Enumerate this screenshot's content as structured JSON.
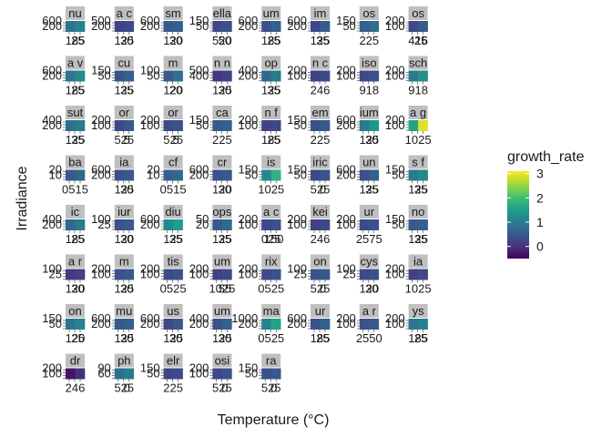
{
  "chart_data": {
    "type": "heatmap",
    "facet_layout": "wrap",
    "xlabel": "Temperature (°C)",
    "ylabel": "Irradiance",
    "color_scale": {
      "name": "viridis",
      "variable": "growth_rate",
      "range": [
        -0.5,
        3.1
      ],
      "breaks": [
        "0",
        "1",
        "2",
        "3"
      ],
      "break_values": [
        0,
        1,
        2,
        3
      ],
      "colors": [
        "#440154",
        "#482878",
        "#3e4989",
        "#31688e",
        "#26828e",
        "#1f9e89",
        "#35b779",
        "#6ece58",
        "#b5de2b",
        "#fde725"
      ]
    },
    "legend": {
      "title": "growth_rate",
      "placement": "right"
    },
    "facets": [
      {
        "strip": "nu",
        "x": [
          "185",
          "25"
        ],
        "y": [
          "600",
          "200"
        ],
        "values": [
          0.9,
          1.1
        ]
      },
      {
        "strip": "a c",
        "x": [
          "125",
          "30"
        ],
        "y": [
          "500",
          "200"
        ],
        "values": [
          0.2,
          0.3
        ]
      },
      {
        "strip": "sm",
        "x": [
          "120",
          "30"
        ],
        "y": [
          "600",
          "200"
        ],
        "values": [
          0.5,
          0.6
        ]
      },
      {
        "strip": "ella",
        "x": [
          "520",
          "50"
        ],
        "y": [
          "150",
          "50"
        ],
        "values": [
          0.3,
          0.4
        ]
      },
      {
        "strip": "um",
        "x": [
          "185",
          "25"
        ],
        "y": [
          "600",
          "200"
        ],
        "values": [
          0.4,
          0.6
        ]
      },
      {
        "strip": "im",
        "x": [
          "125",
          "35"
        ],
        "y": [
          "600",
          "200"
        ],
        "values": [
          0.3,
          0.5
        ]
      },
      {
        "strip": "os",
        "x": [
          "225",
          ""
        ],
        "y": [
          "150",
          "50"
        ],
        "values": [
          0.6,
          0.8
        ]
      },
      {
        "strip": "os",
        "x": [
          "416",
          "25"
        ],
        "y": [
          "200",
          "100"
        ],
        "values": [
          0.3,
          0.5
        ]
      },
      {
        "strip": "a v",
        "x": [
          "185",
          "25"
        ],
        "y": [
          "600",
          "200"
        ],
        "values": [
          0.9,
          1.2
        ]
      },
      {
        "strip": "cu",
        "x": [
          "125",
          "35"
        ],
        "y": [
          "150",
          "50"
        ],
        "values": [
          0.4,
          0.6
        ]
      },
      {
        "strip": "m",
        "x": [
          "120",
          "20"
        ],
        "y": [
          "100",
          "50"
        ],
        "values": [
          0.5,
          0.8
        ]
      },
      {
        "strip": "n n",
        "x": [
          "125",
          "30"
        ],
        "y": [
          "500",
          "400"
        ],
        "values": [
          0.1,
          0.2
        ]
      },
      {
        "strip": "op",
        "x": [
          "125",
          "35"
        ],
        "y": [
          "400",
          "200"
        ],
        "values": [
          0.7,
          1.0
        ]
      },
      {
        "strip": "n c",
        "x": [
          "246",
          ""
        ],
        "y": [
          "200",
          "100"
        ],
        "values": [
          0.2,
          0.3
        ]
      },
      {
        "strip": "iso",
        "x": [
          "918",
          ""
        ],
        "y": [
          "200",
          "100"
        ],
        "values": [
          0.3,
          0.4
        ]
      },
      {
        "strip": "sch",
        "x": [
          "918",
          ""
        ],
        "y": [
          "200",
          "100"
        ],
        "values": [
          1.0,
          1.3
        ]
      },
      {
        "strip": "sut",
        "x": [
          "125",
          "35"
        ],
        "y": [
          "400",
          "200"
        ],
        "values": [
          0.8,
          1.0
        ]
      },
      {
        "strip": "or",
        "x": [
          "525",
          "5"
        ],
        "y": [
          "200",
          "100"
        ],
        "values": [
          0.3,
          0.5
        ]
      },
      {
        "strip": "or",
        "x": [
          "525",
          "5"
        ],
        "y": [
          "200",
          "100"
        ],
        "values": [
          0.3,
          0.4
        ]
      },
      {
        "strip": "ca",
        "x": [
          "225",
          ""
        ],
        "y": [
          "150",
          "50"
        ],
        "values": [
          0.5,
          0.6
        ]
      },
      {
        "strip": "n f",
        "x": [
          "185",
          "25"
        ],
        "y": [
          "200",
          "100"
        ],
        "values": [
          0.2,
          0.3
        ]
      },
      {
        "strip": "em",
        "x": [
          "225",
          ""
        ],
        "y": [
          "150",
          "50"
        ],
        "values": [
          0.4,
          0.5
        ]
      },
      {
        "strip": "ium",
        "x": [
          "125",
          "30"
        ],
        "y": [
          "600",
          "200"
        ],
        "values": [
          1.0,
          1.4
        ]
      },
      {
        "strip": "a g",
        "x": [
          "1025",
          ""
        ],
        "y": [
          "200",
          "100"
        ],
        "values": [
          1.6,
          2.9
        ]
      },
      {
        "strip": "ba",
        "x": [
          "0515",
          ""
        ],
        "y": [
          "20",
          "10"
        ],
        "values": [
          0.5,
          0.7
        ]
      },
      {
        "strip": "ia",
        "x": [
          "125",
          "30"
        ],
        "y": [
          "600",
          "200"
        ],
        "values": [
          0.4,
          0.5
        ]
      },
      {
        "strip": "cf",
        "x": [
          "0515",
          ""
        ],
        "y": [
          "20",
          "10"
        ],
        "values": [
          0.6,
          0.7
        ]
      },
      {
        "strip": "cr",
        "x": [
          "120",
          "30"
        ],
        "y": [
          "600",
          "200"
        ],
        "values": [
          0.4,
          0.5
        ]
      },
      {
        "strip": "is",
        "x": [
          "1025",
          ""
        ],
        "y": [
          "150",
          "50"
        ],
        "values": [
          1.2,
          1.8
        ]
      },
      {
        "strip": "iric",
        "x": [
          "525",
          "0"
        ],
        "y": [
          "150",
          "50"
        ],
        "values": [
          0.3,
          0.4
        ]
      },
      {
        "strip": "un",
        "x": [
          "125",
          "35"
        ],
        "y": [
          "600",
          "200"
        ],
        "values": [
          0.4,
          0.6
        ]
      },
      {
        "strip": "s f",
        "x": [
          "125",
          "35"
        ],
        "y": [
          "150",
          "50"
        ],
        "values": [
          1.0,
          1.2
        ]
      },
      {
        "strip": "ic",
        "x": [
          "185",
          "25"
        ],
        "y": [
          "400",
          "200"
        ],
        "values": [
          0.7,
          1.0
        ]
      },
      {
        "strip": "iur",
        "x": [
          "120",
          "30"
        ],
        "y": [
          "100",
          "25"
        ],
        "values": [
          0.4,
          0.5
        ]
      },
      {
        "strip": "diu",
        "x": [
          "125",
          "35"
        ],
        "y": [
          "600",
          "200"
        ],
        "values": [
          1.2,
          1.5
        ]
      },
      {
        "strip": "ops",
        "x": [
          "125",
          "35"
        ],
        "y": [
          "50",
          "20"
        ],
        "values": [
          0.5,
          0.7
        ]
      },
      {
        "strip": "a c",
        "x": [
          "025",
          "150"
        ],
        "y": [
          "200",
          "100"
        ],
        "values": [
          0.3,
          0.4
        ]
      },
      {
        "strip": "kei",
        "x": [
          "246",
          ""
        ],
        "y": [
          "200",
          "100"
        ],
        "values": [
          0.2,
          0.3
        ]
      },
      {
        "strip": "ur",
        "x": [
          "2575",
          ""
        ],
        "y": [
          "200",
          "100"
        ],
        "values": [
          0.3,
          0.4
        ]
      },
      {
        "strip": "no",
        "x": [
          "125",
          "35"
        ],
        "y": [
          "150",
          "50"
        ],
        "values": [
          0.5,
          0.6
        ]
      },
      {
        "strip": "a r",
        "x": [
          "120",
          "30"
        ],
        "y": [
          "100",
          "25"
        ],
        "values": [
          0.1,
          0.2
        ]
      },
      {
        "strip": "m",
        "x": [
          "125",
          "30"
        ],
        "y": [
          "200",
          "100"
        ],
        "values": [
          0.4,
          0.5
        ]
      },
      {
        "strip": "tis",
        "x": [
          "0525",
          ""
        ],
        "y": [
          "200",
          "100"
        ],
        "values": [
          0.3,
          0.4
        ]
      },
      {
        "strip": "um",
        "x": [
          "1025",
          "55"
        ],
        "y": [
          "200",
          "100"
        ],
        "values": [
          0.2,
          0.3
        ]
      },
      {
        "strip": "rix",
        "x": [
          "0525",
          ""
        ],
        "y": [
          "200",
          "100"
        ],
        "values": [
          0.3,
          0.4
        ]
      },
      {
        "strip": "on",
        "x": [
          "525",
          "0"
        ],
        "y": [
          "100",
          "25"
        ],
        "values": [
          0.4,
          0.5
        ]
      },
      {
        "strip": "cys",
        "x": [
          "120",
          "30"
        ],
        "y": [
          "100",
          "25"
        ],
        "values": [
          0.3,
          0.4
        ]
      },
      {
        "strip": "ia",
        "x": [
          "1025",
          ""
        ],
        "y": [
          "200",
          "100"
        ],
        "values": [
          0.2,
          0.3
        ]
      },
      {
        "strip": "on",
        "x": [
          "120",
          "25"
        ],
        "y": [
          "150",
          "50"
        ],
        "values": [
          0.9,
          1.1
        ]
      },
      {
        "strip": "mu",
        "x": [
          "125",
          "30"
        ],
        "y": [
          "600",
          "200"
        ],
        "values": [
          0.5,
          0.6
        ]
      },
      {
        "strip": "us",
        "x": [
          "125",
          "30"
        ],
        "y": [
          "600",
          "200"
        ],
        "values": [
          0.3,
          0.5
        ]
      },
      {
        "strip": "um",
        "x": [
          "125",
          "30"
        ],
        "y": [
          "400",
          "200"
        ],
        "values": [
          0.4,
          0.6
        ]
      },
      {
        "strip": "ma",
        "x": [
          "0525",
          ""
        ],
        "y": [
          "1000",
          "200"
        ],
        "values": [
          1.1,
          1.6
        ]
      },
      {
        "strip": "ur",
        "x": [
          "185",
          "25"
        ],
        "y": [
          "600",
          "200"
        ],
        "values": [
          0.4,
          0.6
        ]
      },
      {
        "strip": "a r",
        "x": [
          "2550",
          ""
        ],
        "y": [
          "200",
          "100"
        ],
        "values": [
          0.4,
          0.5
        ]
      },
      {
        "strip": "ys",
        "x": [
          "185",
          "25"
        ],
        "y": [
          "200",
          "100"
        ],
        "values": [
          0.9,
          1.1
        ]
      },
      {
        "strip": "dr",
        "x": [
          "246",
          ""
        ],
        "y": [
          "200",
          "100"
        ],
        "values": [
          -0.3,
          0.0
        ]
      },
      {
        "strip": "ph",
        "x": [
          "525",
          "0"
        ],
        "y": [
          "90",
          "60"
        ],
        "values": [
          0.8,
          1.0
        ]
      },
      {
        "strip": "elr",
        "x": [
          "225",
          ""
        ],
        "y": [
          "150",
          "50"
        ],
        "values": [
          0.2,
          0.3
        ]
      },
      {
        "strip": "osi",
        "x": [
          "525",
          "0"
        ],
        "y": [
          "200",
          "100"
        ],
        "values": [
          0.3,
          0.4
        ]
      },
      {
        "strip": "ra",
        "x": [
          "525",
          "0"
        ],
        "y": [
          "150",
          "50"
        ],
        "values": [
          0.4,
          0.5
        ]
      }
    ]
  }
}
